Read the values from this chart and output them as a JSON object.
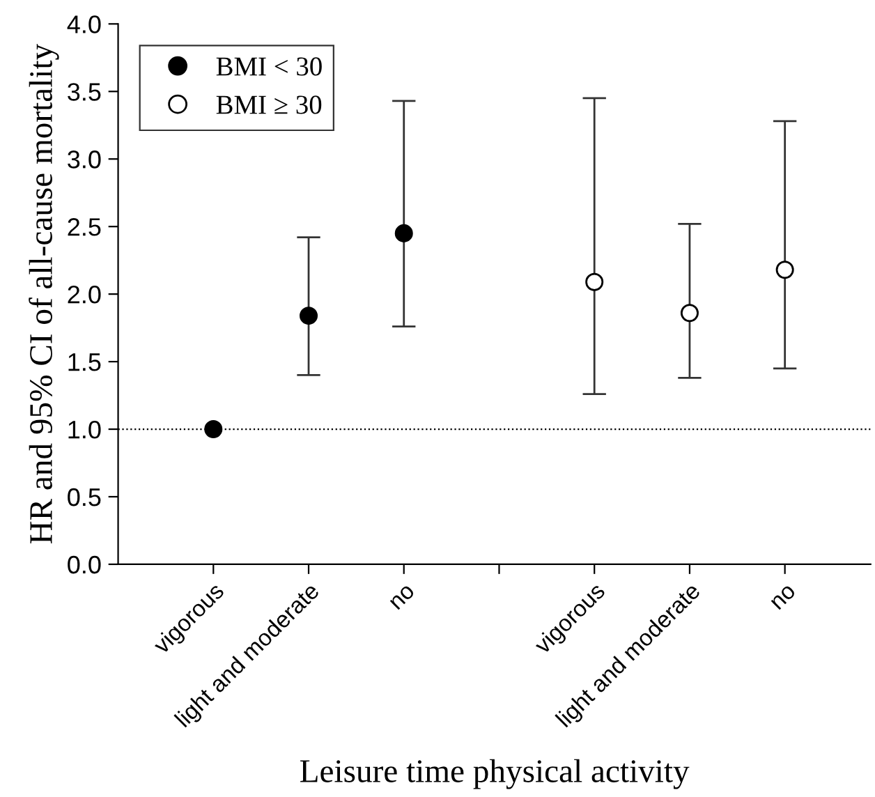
{
  "chart_data": {
    "type": "scatter",
    "xlabel": "Leisure time physical activity",
    "ylabel": "HR and 95% CI of all-cause mortality",
    "categories": [
      "vigorous",
      "light and moderate",
      "no",
      null,
      "vigorous",
      "light and moderate",
      "no"
    ],
    "series": [
      {
        "name": "BMI < 30",
        "color": "#000000",
        "values": [
          1.0,
          1.84,
          2.45,
          null,
          null,
          null,
          null
        ],
        "errors": [
          null,
          [
            1.4,
            2.42
          ],
          [
            1.76,
            3.43
          ],
          null,
          null,
          null,
          null
        ]
      },
      {
        "name": "BMI ≥ 30",
        "color": "#ffffff",
        "values": [
          null,
          null,
          null,
          null,
          2.09,
          1.86,
          2.18
        ],
        "errors": [
          null,
          null,
          null,
          null,
          [
            1.26,
            3.45
          ],
          [
            1.38,
            2.52
          ],
          [
            1.45,
            3.28
          ]
        ]
      }
    ],
    "ylim": [
      0,
      4.0
    ],
    "yticks": [
      {
        "value": 0,
        "label": "0.0"
      },
      {
        "value": 0.5,
        "label": "0.5"
      },
      {
        "value": 1.0,
        "label": "1.0"
      },
      {
        "value": 1.5,
        "label": "1.5"
      },
      {
        "value": 2.0,
        "label": "2.0"
      },
      {
        "value": 2.5,
        "label": "2.5"
      },
      {
        "value": 3.0,
        "label": "3.0"
      },
      {
        "value": 3.5,
        "label": "3.5"
      },
      {
        "value": 4.0,
        "label": "4.0"
      }
    ],
    "ref_lines": [
      {
        "axis": "y",
        "value": 1.0,
        "line_style": "dotted"
      }
    ],
    "marker": "circle",
    "legend": "top left",
    "grid": false
  }
}
